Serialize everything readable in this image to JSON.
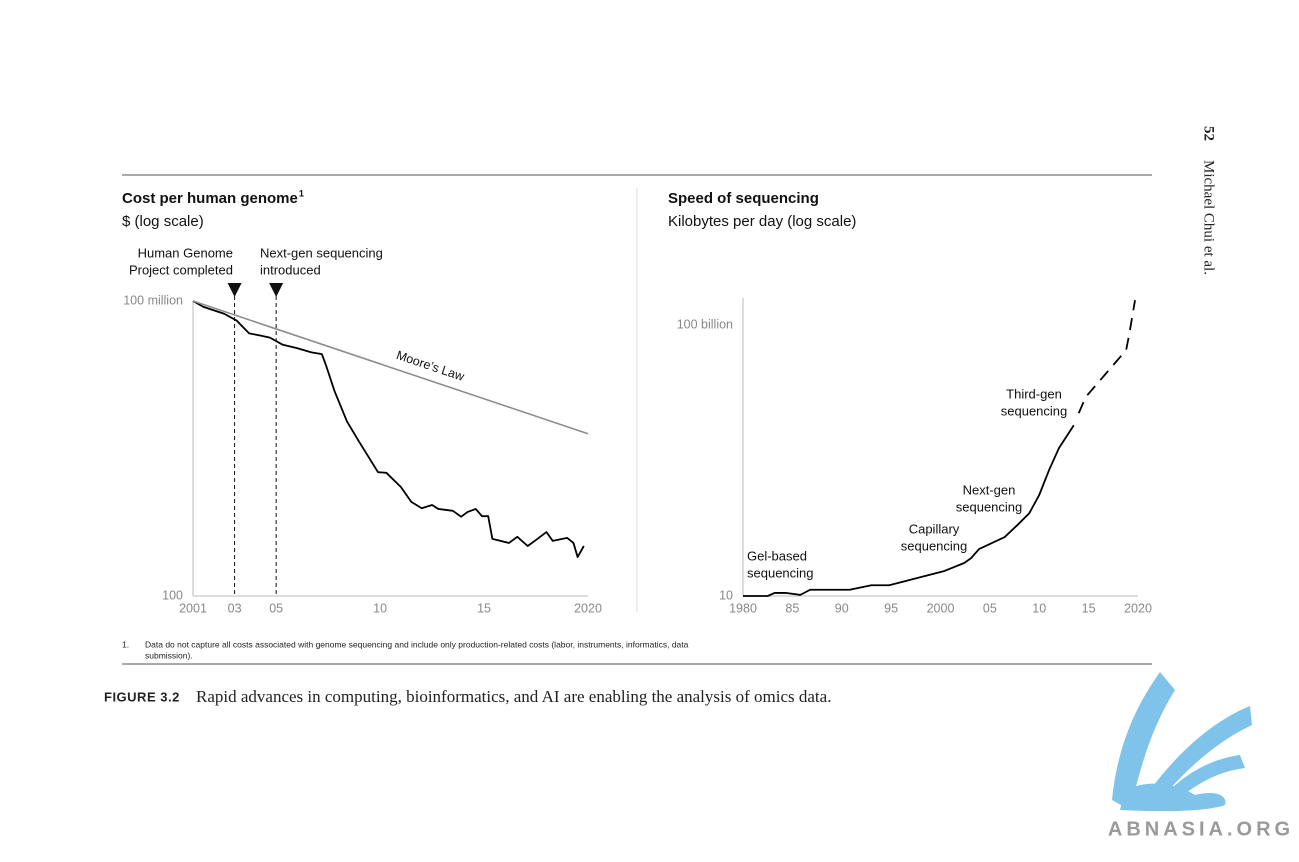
{
  "page": {
    "page_number": "52",
    "running_head": "Michael Chui et al.",
    "footnote": {
      "marker": "1.",
      "lines": [
        "Data do not capture all costs associated with genome sequencing and include only production-related costs (labor, instruments, informatics, data",
        "submission)."
      ]
    },
    "caption": {
      "label": "FIGURE 3.2",
      "text": "Rapid advances in computing, bioinformatics, and AI are enabling the analysis of omics data."
    },
    "watermark": "ABNASIA.ORG"
  },
  "chart_data": [
    {
      "type": "line",
      "title": "Cost per human genome",
      "footnote_ref": "1",
      "subtitle": "$ (log scale)",
      "log_y": true,
      "grid": false,
      "xlim": [
        2001,
        2020
      ],
      "ylim": [
        100,
        100000000
      ],
      "xticks": [
        2001,
        {
          "value": 2003,
          "label": "03"
        },
        {
          "value": 2005,
          "label": "05"
        },
        {
          "value": 2010,
          "label": "10"
        },
        {
          "value": 2015,
          "label": "15"
        },
        2020
      ],
      "yticks": [
        100,
        {
          "value": 100000000,
          "label": "100 million"
        }
      ],
      "series": [
        {
          "color": "#000000",
          "dash": false,
          "x": [
            2001,
            2001.5,
            2002.5,
            2003.1,
            2003.7,
            2004.2,
            2004.7,
            2005.3,
            2006,
            2006.7,
            2007.2,
            2007.4,
            2007.8,
            2008.4,
            2009,
            2009.9,
            2010.3,
            2011,
            2011.5,
            2012,
            2012.5,
            2012.8,
            2013.5,
            2013.9,
            2014.2,
            2014.6,
            2014.9,
            2015.2,
            2015.4,
            2016.2,
            2016.6,
            2017.1,
            2017.5,
            2018,
            2018.3,
            2019,
            2019.3,
            2019.5,
            2019.8
          ],
          "values": [
            100000000,
            76000000,
            55000000,
            40000000,
            22000000,
            20000000,
            18000000,
            13000000,
            11000000,
            9000000,
            8300000,
            4900000,
            1500000,
            360000,
            135000,
            33000,
            32000,
            16500,
            8200,
            6100,
            7100,
            5900,
            5400,
            4100,
            5100,
            5900,
            4200,
            4200,
            1450,
            1200,
            1600,
            1040,
            1380,
            2000,
            1320,
            1520,
            1200,
            620,
            1040
          ]
        },
        {
          "name": "Moore’s Law",
          "color": "#8c8c8c",
          "dash": false,
          "x": [
            2001,
            2020
          ],
          "values": [
            100000000,
            200000
          ]
        }
      ],
      "annotations": [
        {
          "x": 2003,
          "lines": [
            "Human Genome",
            "Project completed"
          ]
        },
        {
          "x": 2005,
          "lines": [
            "Next-gen sequencing",
            "introduced"
          ]
        }
      ]
    },
    {
      "type": "line",
      "title": "Speed of sequencing",
      "subtitle": "Kilobytes per day (log scale)",
      "log_y": true,
      "grid": false,
      "xlim": [
        1980,
        2020
      ],
      "ylim": [
        10,
        1000000000000
      ],
      "xticks": [
        1980,
        {
          "value": 1985,
          "label": "85"
        },
        {
          "value": 1990,
          "label": "90"
        },
        {
          "value": 1995,
          "label": "95"
        },
        2000,
        {
          "value": 2005,
          "label": "05"
        },
        {
          "value": 2010,
          "label": "10"
        },
        {
          "value": 2015,
          "label": "15"
        },
        2020
      ],
      "yticks": [
        10,
        {
          "value": 100000000000,
          "label": "100 billion"
        }
      ],
      "series": [
        {
          "color": "#000000",
          "dash": false,
          "x": [
            1980,
            1982.5,
            1983.2,
            1984.3,
            1985.8,
            1986.8,
            1990.8,
            1993,
            1994.8,
            2000.4,
            2002.4,
            2003.1,
            2003.9,
            2006.5,
            2007.8,
            2009,
            2010,
            2011,
            2012,
            2013.5
          ],
          "values": [
            10,
            10,
            13,
            13,
            11,
            17,
            17,
            25,
            25,
            84,
            165,
            250,
            540,
            1500,
            4200,
            11500,
            54000,
            450000,
            2900000,
            20000000
          ]
        },
        {
          "color": "#000000",
          "dash": true,
          "x": [
            2014,
            2014.7,
            2018.8,
            2019.1,
            2019.7
          ],
          "values": [
            56000000,
            220000000,
            12000000000,
            43000000000,
            830000000000
          ]
        }
      ],
      "annotations": [
        {
          "lines": [
            "Gel-based",
            "sequencing"
          ]
        },
        {
          "lines": [
            "Capillary",
            "sequencing"
          ]
        },
        {
          "lines": [
            "Next-gen",
            "sequencing"
          ]
        },
        {
          "lines": [
            "Third-gen",
            "sequencing"
          ]
        }
      ]
    }
  ]
}
